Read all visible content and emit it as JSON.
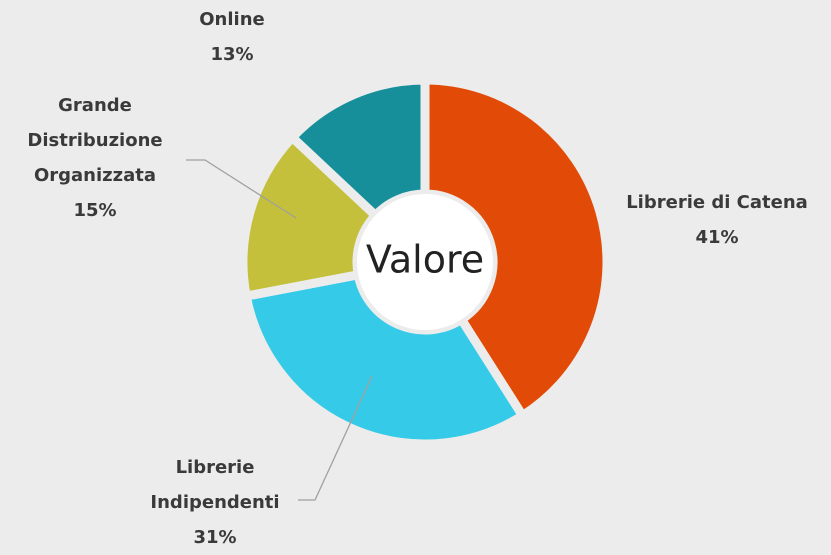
{
  "chart_data": {
    "type": "donut",
    "center_label": "Valore",
    "categories": [
      "Librerie di Catena",
      "Librerie Indipendenti",
      "Grande Distribuzione Organizzata",
      "Online"
    ],
    "values": [
      41,
      31,
      15,
      13
    ],
    "value_labels": [
      "41%",
      "31%",
      "15%",
      "13%"
    ],
    "colors": [
      "#e24b07",
      "#35cbe8",
      "#c4c03b",
      "#168f9a"
    ]
  }
}
